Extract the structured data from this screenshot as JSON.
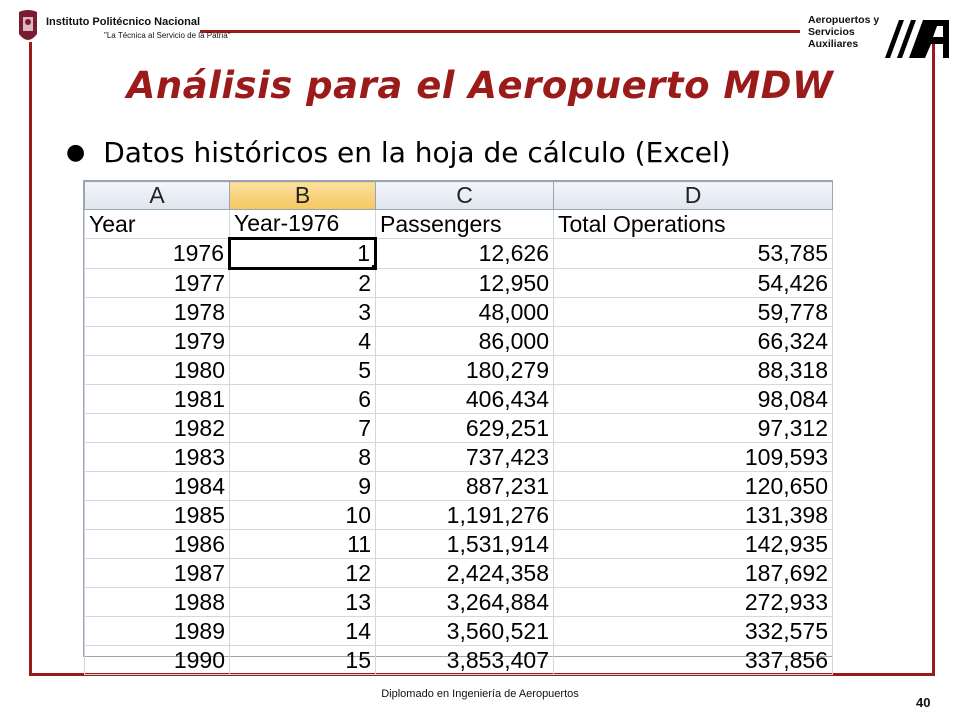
{
  "header": {
    "institution_name": "Instituto Politécnico Nacional",
    "institution_motto": "\"La Técnica al Servicio de la Patria\"",
    "asa_line1": "Aeropuertos y",
    "asa_line2": "Servicios",
    "asa_line3": "Auxiliares",
    "brand_color": "#9b1b1b"
  },
  "slide": {
    "title": "Análisis para el Aeropuerto MDW",
    "bullet": "Datos históricos en la hoja de cálculo (Excel)"
  },
  "spreadsheet": {
    "columns": [
      "A",
      "B",
      "C",
      "D"
    ],
    "selected_column": "B",
    "headers": [
      "Year",
      "Year-1976",
      "Passengers",
      "Total Operations"
    ],
    "rows": [
      [
        "1976",
        "1",
        "12,626",
        "53,785"
      ],
      [
        "1977",
        "2",
        "12,950",
        "54,426"
      ],
      [
        "1978",
        "3",
        "48,000",
        "59,778"
      ],
      [
        "1979",
        "4",
        "86,000",
        "66,324"
      ],
      [
        "1980",
        "5",
        "180,279",
        "88,318"
      ],
      [
        "1981",
        "6",
        "406,434",
        "98,084"
      ],
      [
        "1982",
        "7",
        "629,251",
        "97,312"
      ],
      [
        "1983",
        "8",
        "737,423",
        "109,593"
      ],
      [
        "1984",
        "9",
        "887,231",
        "120,650"
      ],
      [
        "1985",
        "10",
        "1,191,276",
        "131,398"
      ],
      [
        "1986",
        "11",
        "1,531,914",
        "142,935"
      ],
      [
        "1987",
        "12",
        "2,424,358",
        "187,692"
      ],
      [
        "1988",
        "13",
        "3,264,884",
        "272,933"
      ],
      [
        "1989",
        "14",
        "3,560,521",
        "332,575"
      ],
      [
        "1990",
        "15",
        "3,853,407",
        "337,856"
      ]
    ]
  },
  "footer": {
    "text": "Diplomado en Ingeniería de Aeropuertos",
    "page_number": "40"
  }
}
